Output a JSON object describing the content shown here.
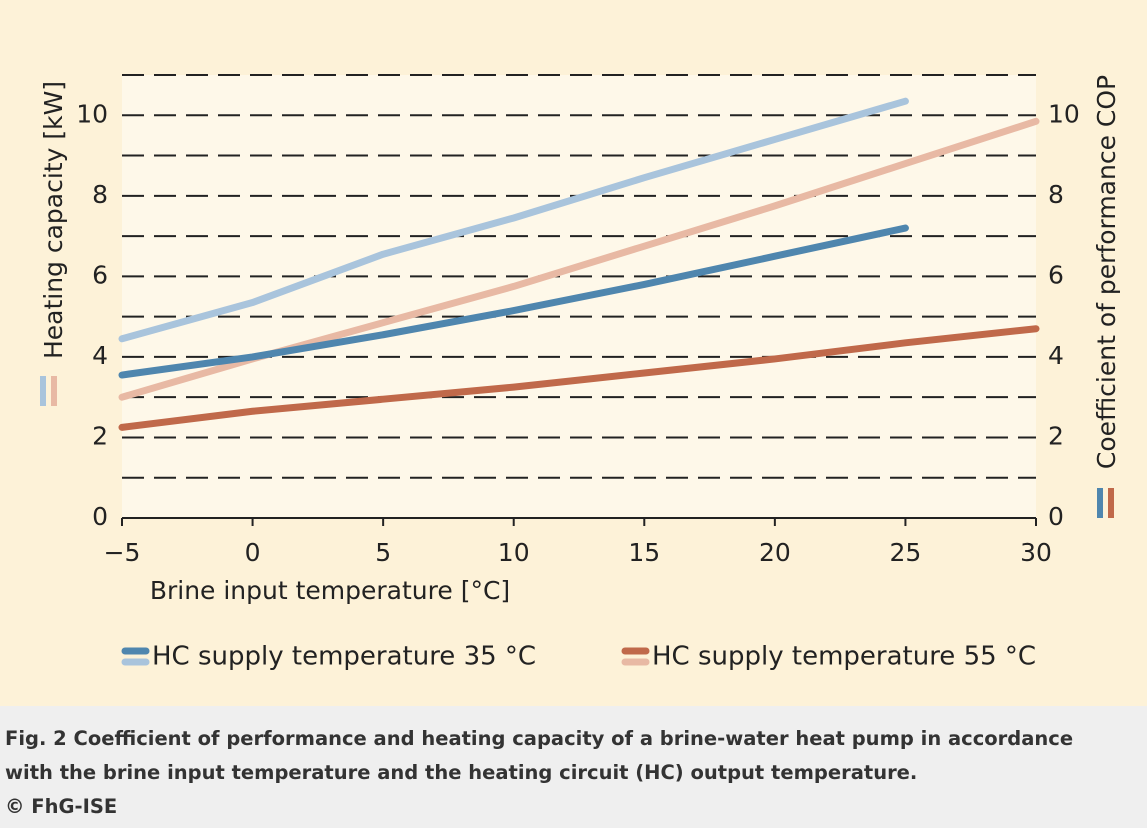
{
  "chart_data": {
    "type": "line",
    "x": [
      -5,
      0,
      5,
      10,
      15,
      20,
      25,
      30
    ],
    "xlim": [
      -5,
      30
    ],
    "xticks": [
      {
        "value": -5,
        "label": "−5"
      },
      0,
      5,
      10,
      15,
      20,
      25,
      30
    ],
    "ylim": [
      0,
      11
    ],
    "yticks": [
      0,
      2,
      4,
      6,
      8,
      10
    ],
    "y2lim": [
      0,
      11
    ],
    "y2ticks": [
      0,
      2,
      4,
      6,
      8,
      10
    ],
    "xlabel": "Brine input temperature [°C]",
    "ylabel": "Heating capacity  [kW]",
    "y2label": "Coefficient of performance  COP",
    "grid": true,
    "series": [
      {
        "color": "#a9c4dc",
        "axis": "y",
        "values": [
          4.45,
          5.35,
          6.55,
          7.45,
          8.45,
          9.4,
          10.35,
          null
        ]
      },
      {
        "color": "#e8b9a4",
        "axis": "y",
        "values": [
          3.0,
          3.95,
          4.85,
          5.75,
          6.75,
          7.75,
          8.8,
          9.85
        ]
      },
      {
        "color": "#4f86ae",
        "axis": "y2",
        "values": [
          3.55,
          4.0,
          4.55,
          5.15,
          5.8,
          6.5,
          7.2,
          null
        ]
      },
      {
        "color": "#c0694a",
        "axis": "y2",
        "values": [
          2.25,
          2.65,
          2.95,
          3.25,
          3.6,
          3.95,
          4.35,
          4.7
        ]
      }
    ],
    "legend": [
      {
        "name": "HC supply temperature 35 °C",
        "series": [
          2,
          0
        ]
      },
      {
        "name": "HC supply temperature  55 °C",
        "series": [
          3,
          1
        ]
      }
    ]
  },
  "caption": {
    "text": "Fig. 2 Coefficient of performance and heating capacity of a brine-water heat pump in accordance with the brine input temperature and the heating circuit (HC) output temperature.",
    "credit": "© FhG-ISE"
  }
}
